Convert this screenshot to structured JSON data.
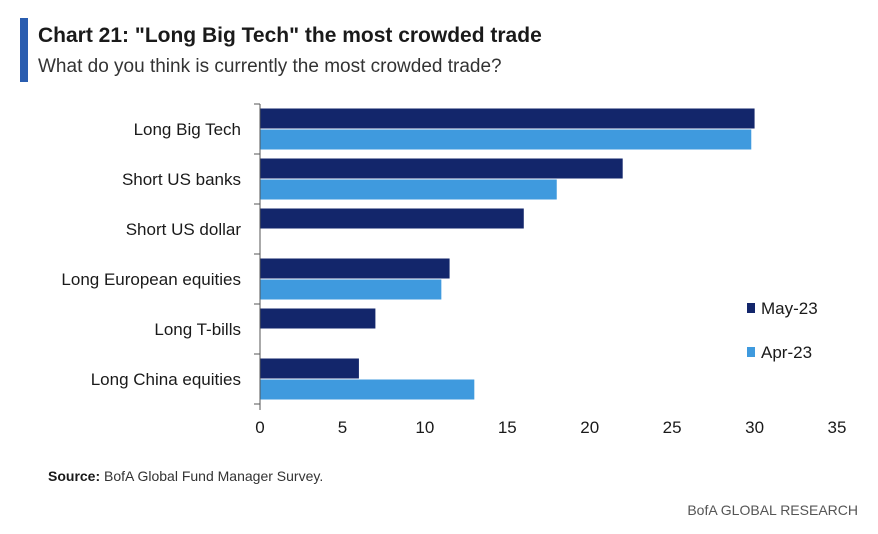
{
  "header": {
    "title": "Chart 21: \"Long Big Tech\" the most crowded trade",
    "subtitle": "What do you think is currently the most crowded trade?",
    "accent_color": "#2a5db0"
  },
  "chart_data": {
    "type": "bar",
    "orientation": "horizontal",
    "categories": [
      "Long Big Tech",
      "Short US banks",
      "Short US dollar",
      "Long European equities",
      "Long T-bills",
      "Long China equities"
    ],
    "series": [
      {
        "name": "May-23",
        "color": "#13266b",
        "values": [
          30,
          22,
          16,
          11.5,
          7,
          6
        ]
      },
      {
        "name": "Apr-23",
        "color": "#3f9ade",
        "values": [
          29.8,
          18,
          null,
          11,
          null,
          13
        ]
      }
    ],
    "xlim": [
      0,
      35
    ],
    "xticks": [
      "0",
      "5",
      "10",
      "15",
      "20",
      "25",
      "30",
      "35"
    ],
    "grid": false,
    "legend_position": "right"
  },
  "footer": {
    "source_label": "Source:",
    "source_text": " BofA Global Fund Manager Survey.",
    "brand": "BofA GLOBAL RESEARCH"
  }
}
